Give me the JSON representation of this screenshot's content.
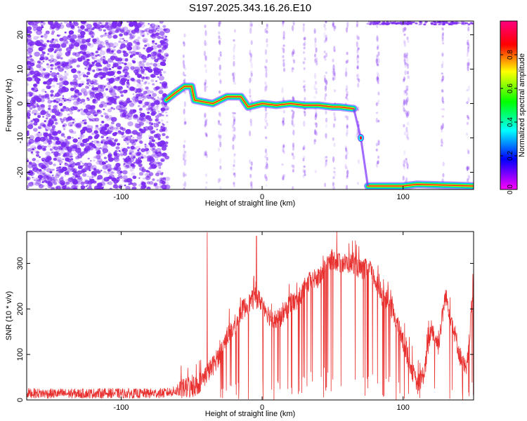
{
  "title": "S197.2025.343.16.26.E10",
  "colors": {
    "spectrogram_noise": "#7d2cf2",
    "snr_line": "#e8302f",
    "axis": "#000000"
  },
  "chart_data": [
    {
      "type": "heatmap",
      "xlabel": "Height of straight line (km)",
      "ylabel": "Frequency (Hz)",
      "xlim": [
        -167,
        150
      ],
      "ylim": [
        -25,
        24
      ],
      "x_ticks": [
        -100,
        0,
        100
      ],
      "y_ticks": [
        -20,
        -10,
        0,
        10,
        20
      ],
      "grid": false,
      "colorbar": {
        "label": "Normalized spectral amplitude",
        "range": [
          0.0,
          1.0
        ],
        "ticks": [
          0.0,
          0.2,
          0.4,
          0.6,
          0.8
        ],
        "colormap": [
          "#ff00ff",
          "#0000ff",
          "#00ffff",
          "#00ff00",
          "#ffff00",
          "#ff0000",
          "#ff0080"
        ]
      },
      "signal_track": [
        {
          "x": -68,
          "y": 1
        },
        {
          "x": -62,
          "y": 3
        },
        {
          "x": -55,
          "y": 5
        },
        {
          "x": -50,
          "y": 5
        },
        {
          "x": -48,
          "y": 1
        },
        {
          "x": -35,
          "y": 0
        },
        {
          "x": -25,
          "y": 2
        },
        {
          "x": -15,
          "y": 2
        },
        {
          "x": -10,
          "y": -1
        },
        {
          "x": 0,
          "y": 0
        },
        {
          "x": 10,
          "y": -0.5
        },
        {
          "x": 20,
          "y": 0
        },
        {
          "x": 30,
          "y": -0.5
        },
        {
          "x": 40,
          "y": -0.5
        },
        {
          "x": 50,
          "y": -1
        },
        {
          "x": 55,
          "y": -1
        },
        {
          "x": 65,
          "y": -1.5
        },
        {
          "x": 70,
          "y": -10
        },
        {
          "x": 75,
          "y": -24
        },
        {
          "x": 100,
          "y": -24
        },
        {
          "x": 110,
          "y": -23.5
        },
        {
          "x": 150,
          "y": -24
        }
      ],
      "noise_region_x": [
        -167,
        -67
      ]
    },
    {
      "type": "line",
      "xlabel": "Height of straight line (km)",
      "ylabel": "SNR (10 * v/v)",
      "xlim": [
        -167,
        150
      ],
      "ylim": [
        0,
        370
      ],
      "x_ticks": [
        -100,
        0,
        100
      ],
      "y_ticks": [
        0,
        100,
        200,
        300
      ],
      "grid": false,
      "series": [
        {
          "envelope": [
            {
              "x": -167,
              "y": 15
            },
            {
              "x": -150,
              "y": 14
            },
            {
              "x": -130,
              "y": 14
            },
            {
              "x": -110,
              "y": 15
            },
            {
              "x": -90,
              "y": 14
            },
            {
              "x": -70,
              "y": 15
            },
            {
              "x": -60,
              "y": 20
            },
            {
              "x": -55,
              "y": 25
            },
            {
              "x": -50,
              "y": 25
            },
            {
              "x": -45,
              "y": 35
            },
            {
              "x": -40,
              "y": 55
            },
            {
              "x": -35,
              "y": 75
            },
            {
              "x": -30,
              "y": 100
            },
            {
              "x": -25,
              "y": 140
            },
            {
              "x": -20,
              "y": 160
            },
            {
              "x": -15,
              "y": 195
            },
            {
              "x": -10,
              "y": 210
            },
            {
              "x": -5,
              "y": 225
            },
            {
              "x": 0,
              "y": 215
            },
            {
              "x": 5,
              "y": 185
            },
            {
              "x": 10,
              "y": 175
            },
            {
              "x": 15,
              "y": 185
            },
            {
              "x": 20,
              "y": 215
            },
            {
              "x": 25,
              "y": 215
            },
            {
              "x": 30,
              "y": 245
            },
            {
              "x": 35,
              "y": 265
            },
            {
              "x": 40,
              "y": 265
            },
            {
              "x": 45,
              "y": 295
            },
            {
              "x": 50,
              "y": 310
            },
            {
              "x": 55,
              "y": 300
            },
            {
              "x": 60,
              "y": 300
            },
            {
              "x": 65,
              "y": 300
            },
            {
              "x": 70,
              "y": 285
            },
            {
              "x": 75,
              "y": 290
            },
            {
              "x": 80,
              "y": 265
            },
            {
              "x": 85,
              "y": 230
            },
            {
              "x": 90,
              "y": 215
            },
            {
              "x": 95,
              "y": 175
            },
            {
              "x": 100,
              "y": 125
            },
            {
              "x": 105,
              "y": 80
            },
            {
              "x": 110,
              "y": 30
            },
            {
              "x": 115,
              "y": 60
            },
            {
              "x": 120,
              "y": 160
            },
            {
              "x": 125,
              "y": 120
            },
            {
              "x": 130,
              "y": 230
            },
            {
              "x": 135,
              "y": 170
            },
            {
              "x": 140,
              "y": 100
            },
            {
              "x": 145,
              "y": 60
            },
            {
              "x": 150,
              "y": 250
            }
          ],
          "spikes": [
            {
              "x": -39,
              "y": 368
            },
            {
              "x": -4,
              "y": 360
            },
            {
              "x": 47,
              "y": 310
            },
            {
              "x": 53,
              "y": 370
            }
          ]
        }
      ]
    }
  ]
}
